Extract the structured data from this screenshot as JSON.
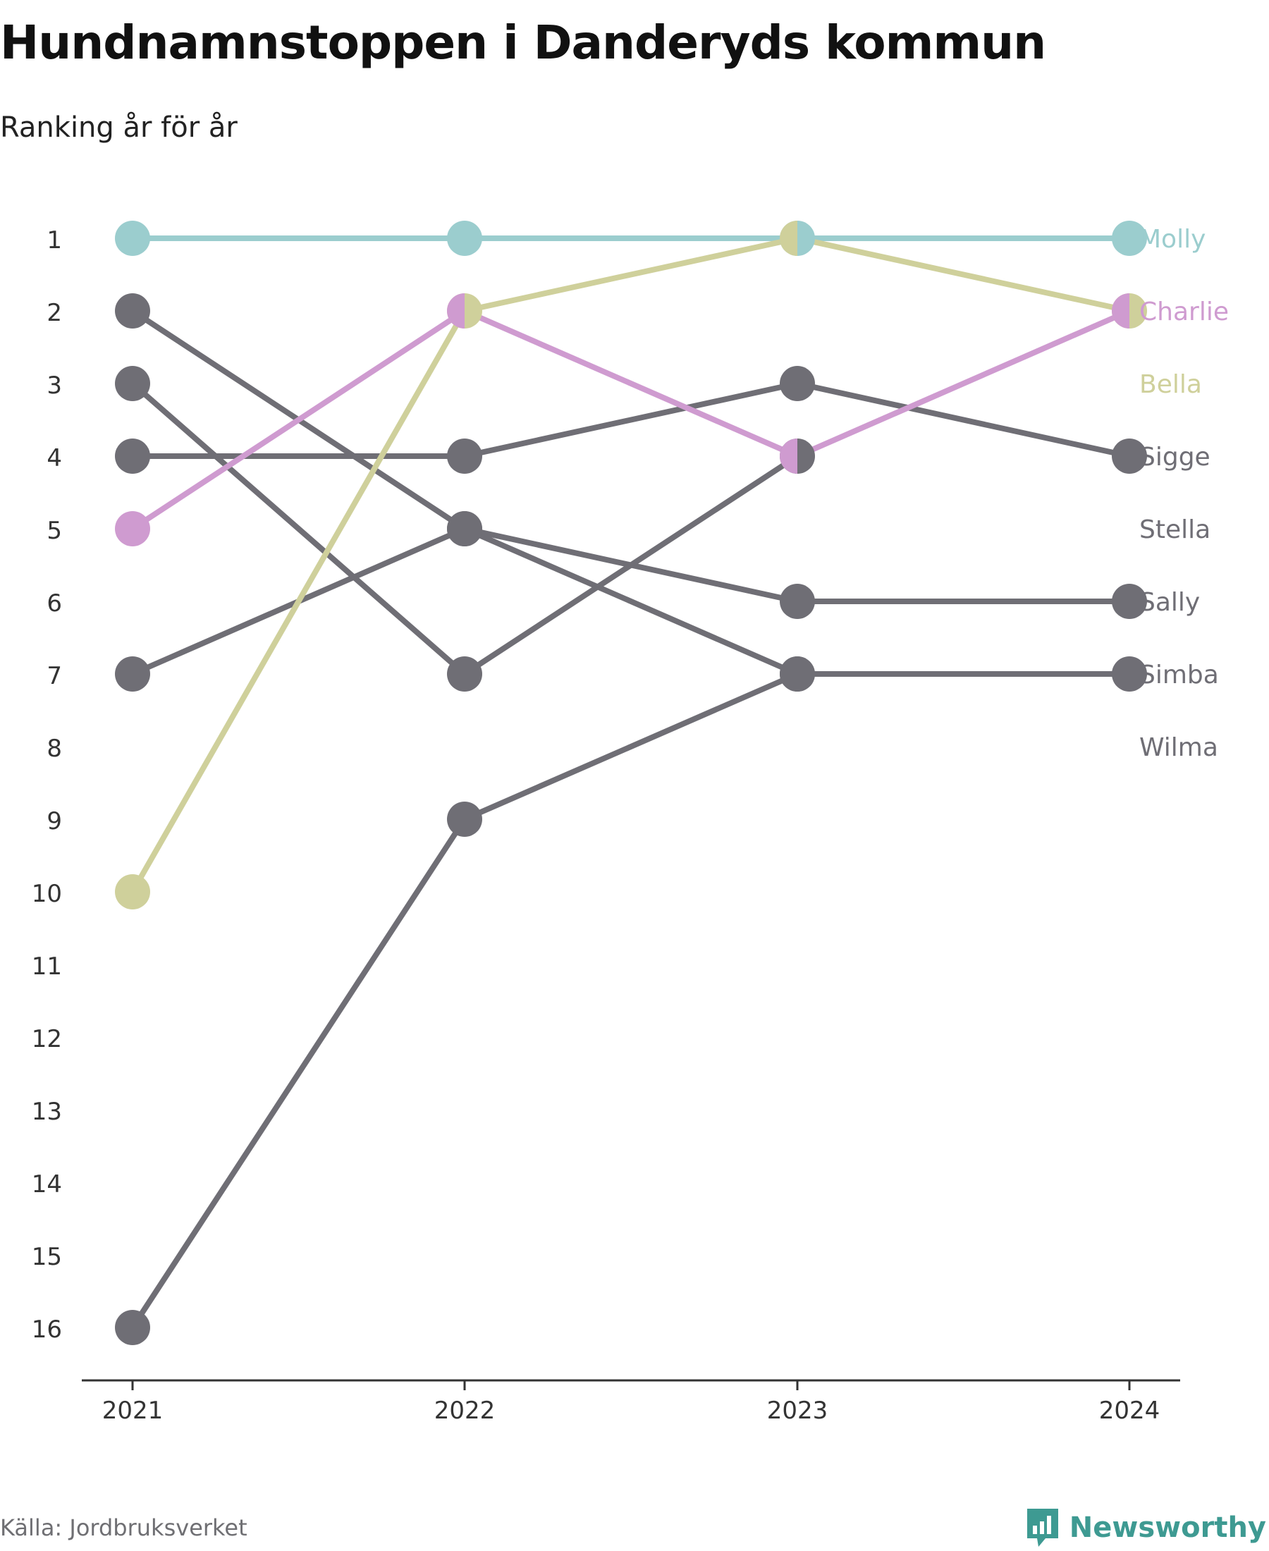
{
  "title": "Hundnamnstoppen i Danderyds kommun",
  "subtitle": "Ranking år för år",
  "source": "Källa: Jordbruksverket",
  "brand": {
    "name": "Newsworthy",
    "icon": "newsworthy-logo-icon",
    "color": "#3e9a92"
  },
  "colors": {
    "Molly": "#9bcdce",
    "Charlie": "#cf9bd0",
    "Bella": "#cfd09b",
    "default": "#6f6e75",
    "axis": "#333333",
    "tick_label": "#333333"
  },
  "chart_data": {
    "type": "line",
    "title": "Hundnamnstoppen i Danderyds kommun",
    "subtitle": "Ranking år för år",
    "x": [
      "2021",
      "2022",
      "2023",
      "2024"
    ],
    "y_ticks": [
      "1",
      "2",
      "3",
      "4",
      "5",
      "6",
      "7",
      "8",
      "9",
      "10",
      "11",
      "12",
      "13",
      "14",
      "15",
      "16"
    ],
    "ylim": [
      1,
      16
    ],
    "y_reversed": true,
    "grid": false,
    "legend": "right-end labels",
    "series": [
      {
        "name": "Molly",
        "values": [
          1,
          1,
          1,
          1
        ]
      },
      {
        "name": "Charlie",
        "values": [
          5,
          2,
          4,
          2
        ]
      },
      {
        "name": "Bella",
        "values": [
          10,
          2,
          1,
          2
        ]
      },
      {
        "name": "Sigge",
        "values": [
          4,
          4,
          3,
          4
        ]
      },
      {
        "name": "Stella",
        "values": [
          2,
          5,
          7,
          null
        ]
      },
      {
        "name": "Sally",
        "values": [
          7,
          5,
          6,
          6
        ]
      },
      {
        "name": "Simba",
        "values": [
          16,
          9,
          7,
          7
        ]
      },
      {
        "name": "Wilma",
        "values": [
          3,
          7,
          4,
          null
        ]
      }
    ],
    "end_labels": [
      "Molly",
      "Charlie",
      "Bella",
      "Sigge",
      "Stella",
      "Sally",
      "Simba",
      "Wilma"
    ]
  }
}
